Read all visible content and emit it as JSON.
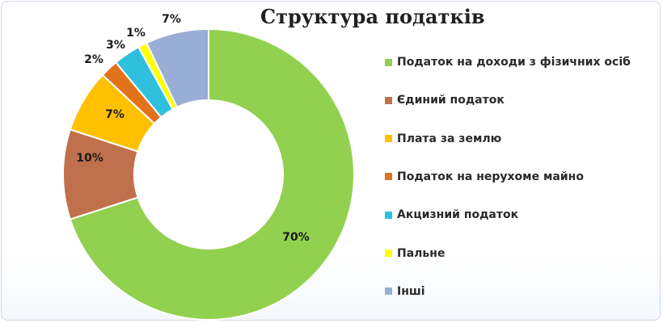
{
  "chart_data": {
    "type": "pie",
    "subtype": "doughnut",
    "title": "Структура податків",
    "legend_position": "right",
    "series": [
      {
        "name": "Податок на доходи з фізичних осіб",
        "value": 70,
        "label": "70%",
        "color": "#92d050"
      },
      {
        "name": "Єдиний податок",
        "value": 10,
        "label": "10%",
        "color": "#c0704d"
      },
      {
        "name": "Плата за землю",
        "value": 7,
        "label": "7%",
        "color": "#ffc000"
      },
      {
        "name": "Податок на нерухоме майно",
        "value": 2,
        "label": "2%",
        "color": "#e2721a"
      },
      {
        "name": "Акцизний податок",
        "value": 3,
        "label": "3%",
        "color": "#2fc0de"
      },
      {
        "name": "Пальне",
        "value": 1,
        "label": "1%",
        "color": "#ffff00"
      },
      {
        "name": "Інші",
        "value": 7,
        "label": "7%",
        "color": "#99aed6"
      }
    ]
  }
}
